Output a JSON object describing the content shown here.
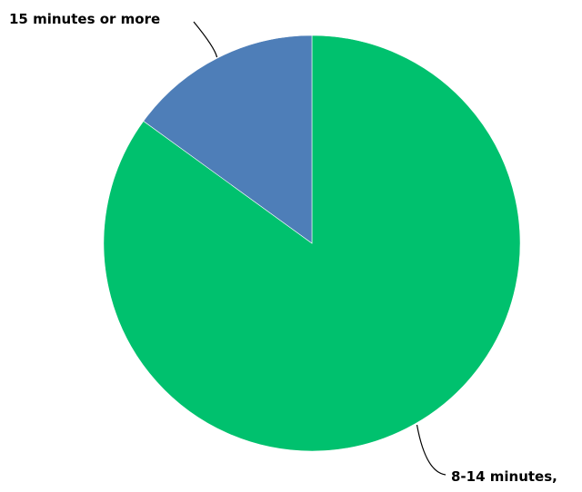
{
  "chart_data": {
    "type": "pie",
    "title": "",
    "start_angle_deg": 0,
    "direction": "clockwise",
    "slices": [
      {
        "label": "8-14 minutes,",
        "value": 85,
        "color": "#00c16e"
      },
      {
        "label": "15 minutes or more",
        "value": 15,
        "color": "#4e7eb8"
      }
    ],
    "legend": "none"
  }
}
